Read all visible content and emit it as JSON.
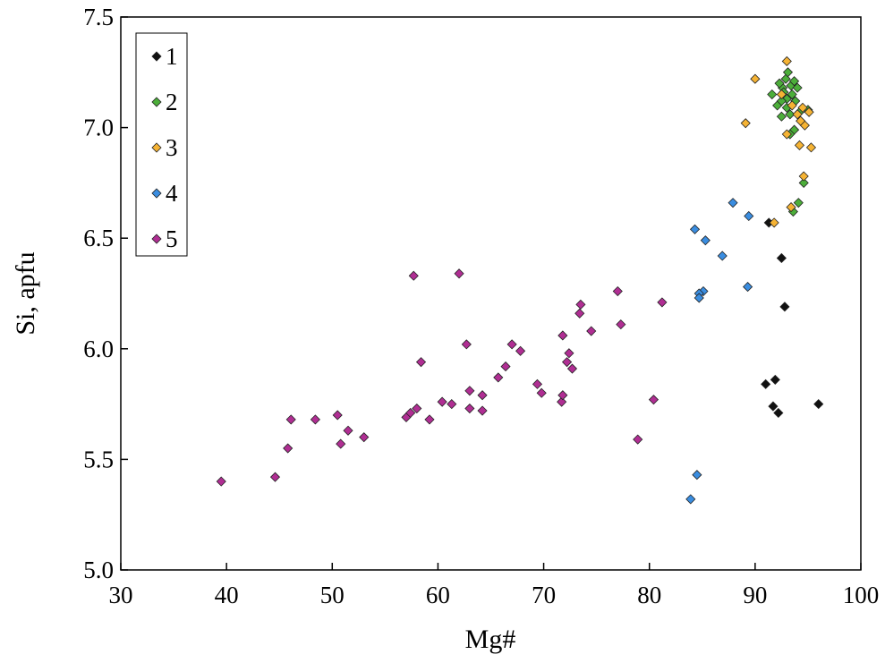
{
  "chart_data": {
    "type": "scatter",
    "xlabel": "Mg#",
    "ylabel": "Si, apfu",
    "xlim": [
      30,
      100
    ],
    "ylim": [
      5.0,
      7.5
    ],
    "xticks": [
      "30",
      "40",
      "50",
      "60",
      "70",
      "80",
      "90",
      "100"
    ],
    "yticks": [
      "5.0",
      "5.5",
      "6.0",
      "6.5",
      "7.0",
      "7.5"
    ],
    "grid": false,
    "legend_position": "top-left",
    "series": [
      {
        "name": "1",
        "color": "#111111",
        "marker": "diamond",
        "points": [
          [
            91.3,
            6.57
          ],
          [
            92.5,
            6.41
          ],
          [
            92.8,
            6.19
          ],
          [
            91.0,
            5.84
          ],
          [
            91.9,
            5.86
          ],
          [
            91.7,
            5.74
          ],
          [
            92.2,
            5.71
          ],
          [
            96.0,
            5.75
          ]
        ]
      },
      {
        "name": "2",
        "color": "#4cae3a",
        "marker": "diamond",
        "points": [
          [
            92.6,
            7.18
          ],
          [
            92.9,
            7.22
          ],
          [
            93.1,
            7.25
          ],
          [
            93.4,
            7.19
          ],
          [
            93.7,
            7.21
          ],
          [
            94.0,
            7.18
          ],
          [
            92.3,
            7.2
          ],
          [
            92.7,
            7.16
          ],
          [
            93.0,
            7.13
          ],
          [
            93.5,
            7.15
          ],
          [
            91.6,
            7.15
          ],
          [
            92.1,
            7.1
          ],
          [
            92.5,
            7.05
          ],
          [
            93.0,
            7.09
          ],
          [
            93.3,
            7.06
          ],
          [
            94.2,
            7.07
          ],
          [
            95.0,
            7.08
          ],
          [
            93.7,
            6.99
          ],
          [
            93.3,
            6.97
          ],
          [
            92.5,
            7.12
          ],
          [
            93.8,
            7.12
          ],
          [
            94.6,
            6.75
          ],
          [
            94.1,
            6.66
          ],
          [
            93.6,
            6.62
          ]
        ]
      },
      {
        "name": "3",
        "color": "#f5b334",
        "marker": "diamond",
        "points": [
          [
            93.0,
            7.3
          ],
          [
            90.0,
            7.22
          ],
          [
            92.5,
            7.15
          ],
          [
            93.5,
            7.1
          ],
          [
            94.0,
            7.06
          ],
          [
            94.5,
            7.09
          ],
          [
            95.1,
            7.07
          ],
          [
            94.7,
            7.01
          ],
          [
            94.3,
            7.03
          ],
          [
            93.0,
            6.97
          ],
          [
            89.1,
            7.02
          ],
          [
            94.2,
            6.92
          ],
          [
            95.3,
            6.91
          ],
          [
            94.6,
            6.78
          ],
          [
            93.4,
            6.64
          ],
          [
            91.8,
            6.57
          ]
        ]
      },
      {
        "name": "4",
        "color": "#3a8de0",
        "marker": "diamond",
        "points": [
          [
            87.9,
            6.66
          ],
          [
            89.4,
            6.6
          ],
          [
            84.3,
            6.54
          ],
          [
            85.3,
            6.49
          ],
          [
            86.9,
            6.42
          ],
          [
            89.3,
            6.28
          ],
          [
            85.1,
            6.26
          ],
          [
            84.7,
            6.25
          ],
          [
            84.7,
            6.23
          ],
          [
            84.5,
            5.43
          ],
          [
            83.9,
            5.32
          ]
        ]
      },
      {
        "name": "5",
        "color": "#b02e93",
        "marker": "diamond",
        "points": [
          [
            39.5,
            5.4
          ],
          [
            44.6,
            5.42
          ],
          [
            45.8,
            5.55
          ],
          [
            46.1,
            5.68
          ],
          [
            48.4,
            5.68
          ],
          [
            50.5,
            5.7
          ],
          [
            50.8,
            5.57
          ],
          [
            51.5,
            5.63
          ],
          [
            53.0,
            5.6
          ],
          [
            57.0,
            5.69
          ],
          [
            57.4,
            5.71
          ],
          [
            57.7,
            6.33
          ],
          [
            58.0,
            5.73
          ],
          [
            58.4,
            5.94
          ],
          [
            59.2,
            5.68
          ],
          [
            60.4,
            5.76
          ],
          [
            61.3,
            5.75
          ],
          [
            62.0,
            6.34
          ],
          [
            62.7,
            6.02
          ],
          [
            63.0,
            5.81
          ],
          [
            63.0,
            5.73
          ],
          [
            64.2,
            5.79
          ],
          [
            64.2,
            5.72
          ],
          [
            65.7,
            5.87
          ],
          [
            66.4,
            5.92
          ],
          [
            67.0,
            6.02
          ],
          [
            67.8,
            5.99
          ],
          [
            69.4,
            5.84
          ],
          [
            69.8,
            5.8
          ],
          [
            71.7,
            5.76
          ],
          [
            71.8,
            5.79
          ],
          [
            71.8,
            6.06
          ],
          [
            72.2,
            5.94
          ],
          [
            72.4,
            5.98
          ],
          [
            72.7,
            5.91
          ],
          [
            73.4,
            6.16
          ],
          [
            73.5,
            6.2
          ],
          [
            74.5,
            6.08
          ],
          [
            77.0,
            6.26
          ],
          [
            77.3,
            6.11
          ],
          [
            78.9,
            5.59
          ],
          [
            80.4,
            5.77
          ],
          [
            81.2,
            6.21
          ]
        ]
      }
    ]
  }
}
